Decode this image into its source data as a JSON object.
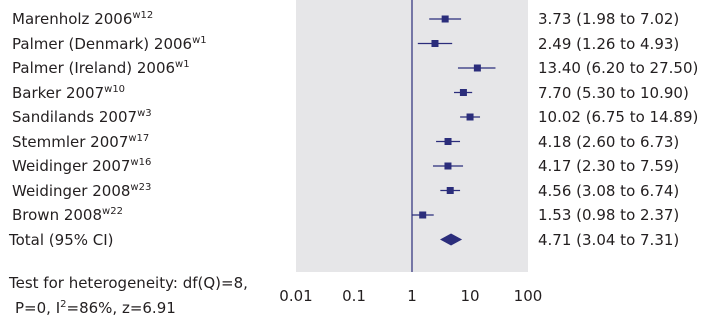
{
  "chart_data": {
    "type": "forest",
    "x_scale": "log",
    "xlim": [
      0.01,
      100
    ],
    "x_ticks": [
      "0.01",
      "0.1",
      "1",
      "10",
      "100"
    ],
    "reference_line": 1,
    "studies": [
      {
        "name": "Marenholz 2006",
        "ref": "w12",
        "or": 3.73,
        "lo": 1.98,
        "hi": 7.02,
        "ci_text": "3.73 (1.98 to 7.02)"
      },
      {
        "name": "Palmer (Denmark) 2006",
        "ref": "w1",
        "or": 2.49,
        "lo": 1.26,
        "hi": 4.93,
        "ci_text": "2.49 (1.26 to 4.93)"
      },
      {
        "name": "Palmer (Ireland) 2006",
        "ref": "w1",
        "or": 13.4,
        "lo": 6.2,
        "hi": 27.5,
        "ci_text": "13.40 (6.20 to 27.50)"
      },
      {
        "name": "Barker 2007",
        "ref": "w10",
        "or": 7.7,
        "lo": 5.3,
        "hi": 10.9,
        "ci_text": "7.70 (5.30 to 10.90)"
      },
      {
        "name": "Sandilands 2007",
        "ref": "w3",
        "or": 10.02,
        "lo": 6.75,
        "hi": 14.89,
        "ci_text": "10.02 (6.75 to 14.89)"
      },
      {
        "name": "Stemmler 2007",
        "ref": "w17",
        "or": 4.18,
        "lo": 2.6,
        "hi": 6.73,
        "ci_text": "4.18 (2.60 to 6.73)"
      },
      {
        "name": "Weidinger 2007",
        "ref": "w16",
        "or": 4.17,
        "lo": 2.3,
        "hi": 7.59,
        "ci_text": "4.17 (2.30 to 7.59)"
      },
      {
        "name": "Weidinger 2008",
        "ref": "w23",
        "or": 4.56,
        "lo": 3.08,
        "hi": 6.74,
        "ci_text": "4.56 (3.08 to 6.74)"
      },
      {
        "name": "Brown 2008",
        "ref": "w22",
        "or": 1.53,
        "lo": 0.98,
        "hi": 2.37,
        "ci_text": "1.53 (0.98 to 2.37)"
      }
    ],
    "total": {
      "name": "Total (95% CI)",
      "or": 4.71,
      "lo": 3.04,
      "hi": 7.31,
      "ci_text": "4.71 (3.04 to 7.31)"
    },
    "heterogeneity": {
      "line1": "Test for heterogeneity: df(Q)=8,",
      "line2_prefix": "P=0, I",
      "line2_sup": "2",
      "line2_suffix": "=86%, z=6.91"
    },
    "colors": {
      "panel": "#e6e6e8",
      "marker": "#2b2d7b",
      "refline": "#2b2d7b",
      "text": "#231f20"
    }
  }
}
